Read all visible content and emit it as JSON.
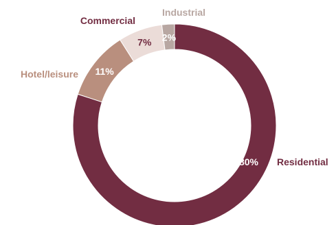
{
  "chart_data": {
    "type": "pie",
    "variant": "donut",
    "title": "",
    "legend": "none",
    "slices": [
      {
        "name": "Residential",
        "value": 80,
        "label": "80%",
        "color": "#722d42",
        "label_color": "#722d42",
        "pct_color": "#ffffff"
      },
      {
        "name": "Hotel/leisure",
        "value": 11,
        "label": "11%",
        "color": "#b98f7e",
        "label_color": "#b98f7e",
        "pct_color": "#ffffff"
      },
      {
        "name": "Commercial",
        "value": 7,
        "label": "7%",
        "color": "#ebdcd8",
        "label_color": "#722d42",
        "pct_color": "#722d42"
      },
      {
        "name": "Industrial",
        "value": 2,
        "label": "2%",
        "color": "#b8a7a2",
        "label_color": "#b8a7a2",
        "pct_color": "#ffffff"
      }
    ]
  }
}
